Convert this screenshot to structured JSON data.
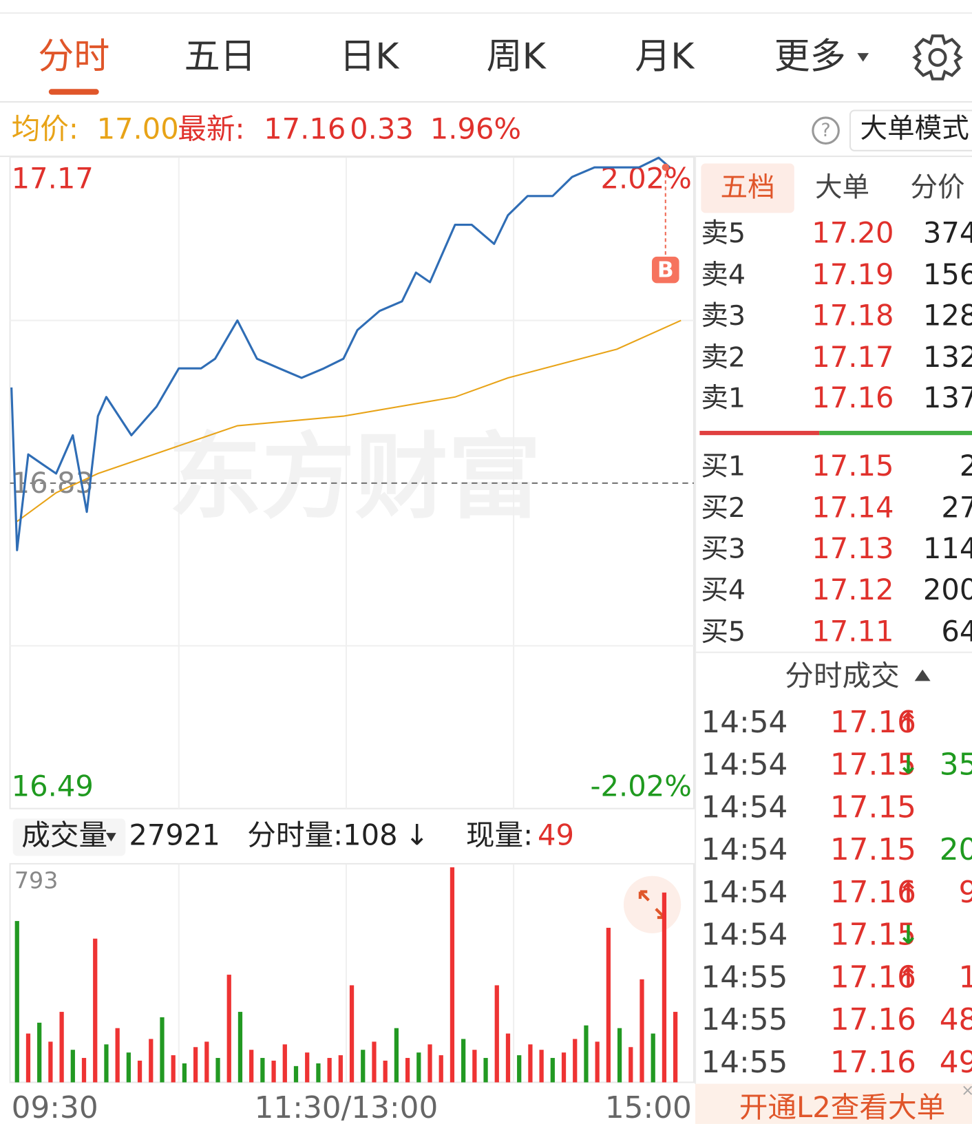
{
  "tabs": [
    "分时",
    "五日",
    "日K",
    "周K",
    "月K",
    "更多"
  ],
  "quote": {
    "avg_label": "均价:",
    "avg": "17.00",
    "latest_label": "最新:",
    "latest": "17.16",
    "change": "0.33",
    "change_pct": "1.96%"
  },
  "help_icon": "?",
  "mode_button": "大单模式",
  "watermark": "东方财富",
  "marker": "B",
  "chart_data": [
    {
      "type": "line",
      "x": [
        0,
        2,
        6,
        11,
        16,
        22,
        27,
        31,
        34,
        43,
        52,
        60,
        68,
        73,
        81,
        88,
        96,
        104,
        112,
        119,
        124,
        132,
        140,
        145,
        150,
        159,
        165,
        173,
        178,
        185,
        194,
        201,
        209,
        217,
        225,
        232,
        236
      ],
      "values": [
        16.93,
        16.76,
        16.86,
        16.85,
        16.84,
        16.88,
        16.8,
        16.9,
        16.92,
        16.88,
        16.91,
        16.95,
        16.95,
        16.96,
        17.0,
        16.96,
        16.95,
        16.94,
        16.95,
        16.96,
        16.99,
        17.01,
        17.02,
        17.05,
        17.04,
        17.1,
        17.1,
        17.08,
        17.11,
        17.13,
        17.13,
        17.15,
        17.16,
        17.16,
        17.16,
        17.17,
        17.16
      ],
      "color": "#2f6db5",
      "avg_x": [
        2,
        16,
        31,
        81,
        119,
        159,
        178,
        217,
        240
      ],
      "avg_values": [
        16.79,
        16.82,
        16.84,
        16.89,
        16.9,
        16.92,
        16.94,
        16.97,
        17.0
      ],
      "avg_color": "#e8a317",
      "xlim": [
        0,
        240
      ],
      "xticks": [
        {
          "value": 0,
          "label": "09:30"
        },
        {
          "value": 120,
          "label": "11:30/13:00"
        },
        {
          "value": 240,
          "label": "15:00"
        }
      ],
      "ylim": [
        16.49,
        17.17
      ],
      "yticks": [
        16.49,
        16.83,
        17.17
      ],
      "y2lim": [
        -2.02,
        2.02
      ],
      "y2ticks": [
        {
          "value": -2.02,
          "label": "-2.02%"
        },
        {
          "value": 2.02,
          "label": "2.02%"
        }
      ],
      "grid": true
    },
    {
      "type": "bar",
      "x": [
        2,
        6,
        10,
        14,
        18,
        22,
        26,
        30,
        34,
        38,
        42,
        46,
        50,
        54,
        58,
        62,
        66,
        70,
        74,
        78,
        82,
        86,
        90,
        94,
        98,
        102,
        106,
        110,
        114,
        118,
        122,
        126,
        130,
        134,
        138,
        142,
        146,
        150,
        154,
        158,
        162,
        166,
        170,
        174,
        178,
        182,
        186,
        190,
        194,
        198,
        202,
        206,
        210,
        214,
        218,
        222,
        226,
        230,
        234,
        238
      ],
      "values": [
        595,
        180,
        220,
        150,
        260,
        120,
        90,
        530,
        140,
        200,
        110,
        80,
        160,
        240,
        100,
        70,
        130,
        150,
        90,
        397,
        260,
        120,
        90,
        80,
        140,
        60,
        110,
        70,
        90,
        100,
        358,
        120,
        150,
        80,
        200,
        90,
        110,
        140,
        100,
        793,
        160,
        120,
        90,
        358,
        180,
        100,
        140,
        120,
        90,
        110,
        160,
        210,
        150,
        570,
        200,
        130,
        380,
        180,
        700,
        260
      ],
      "colors": [
        "#292",
        "#e33",
        "#292",
        "#e33",
        "#e33",
        "#292",
        "#e33",
        "#e33",
        "#292",
        "#e33",
        "#292",
        "#e33",
        "#e33",
        "#292",
        "#e33",
        "#292",
        "#e33",
        "#e33",
        "#292",
        "#e33",
        "#292",
        "#e33",
        "#292",
        "#e33",
        "#e33",
        "#292",
        "#e33",
        "#292",
        "#e33",
        "#e33",
        "#e33",
        "#292",
        "#e33",
        "#e33",
        "#292",
        "#e33",
        "#292",
        "#e33",
        "#e33",
        "#e33",
        "#292",
        "#e33",
        "#292",
        "#e33",
        "#e33",
        "#292",
        "#e33",
        "#e33",
        "#292",
        "#e33",
        "#e33",
        "#292",
        "#e33",
        "#e33",
        "#292",
        "#e33",
        "#e33",
        "#292",
        "#e33",
        "#e33"
      ],
      "xlim": [
        0,
        240
      ],
      "ylim": [
        0,
        793
      ],
      "yticks": [
        793
      ]
    }
  ],
  "volume_header": {
    "selector": "成交量",
    "total": "27921",
    "minute_volume": "分时量:108",
    "trend": "↓",
    "current_label": "现量:",
    "current": "49"
  },
  "side_tabs": [
    "五档",
    "大单",
    "分价"
  ],
  "order_book": {
    "sell": [
      {
        "label": "卖5",
        "price": "17.20",
        "volume": "374"
      },
      {
        "label": "卖4",
        "price": "17.19",
        "volume": "156"
      },
      {
        "label": "卖3",
        "price": "17.18",
        "volume": "128"
      },
      {
        "label": "卖2",
        "price": "17.17",
        "volume": "132"
      },
      {
        "label": "卖1",
        "price": "17.16",
        "volume": "137"
      }
    ],
    "buy": [
      {
        "label": "买1",
        "price": "17.15",
        "volume": "2"
      },
      {
        "label": "买2",
        "price": "17.14",
        "volume": "27"
      },
      {
        "label": "买3",
        "price": "17.13",
        "volume": "114"
      },
      {
        "label": "买4",
        "price": "17.12",
        "volume": "200"
      },
      {
        "label": "买5",
        "price": "17.11",
        "volume": "64"
      }
    ]
  },
  "trades_title": "分时成交",
  "trades": [
    {
      "time": "14:54",
      "price": "17.16",
      "arrow": "↑"
    },
    {
      "time": "14:54",
      "price": "17.15",
      "arrow": "↓",
      "volume": "35",
      "color": "#1f9a1f"
    },
    {
      "time": "14:54",
      "price": "17.15"
    },
    {
      "time": "14:54",
      "price": "17.15",
      "volume": "20",
      "color": "#1f9a1f"
    },
    {
      "time": "14:54",
      "price": "17.16",
      "arrow": "↑",
      "volume": "9",
      "color": "#e0312c"
    },
    {
      "time": "14:54",
      "price": "17.15",
      "arrow": "↓"
    },
    {
      "time": "14:55",
      "price": "17.16",
      "arrow": "↑",
      "volume": "1",
      "color": "#e0312c"
    },
    {
      "time": "14:55",
      "price": "17.16",
      "volume": "48",
      "color": "#e0312c"
    },
    {
      "time": "14:55",
      "price": "17.16",
      "volume": "49",
      "color": "#e0312c"
    }
  ],
  "banner": "开通L2查看大单"
}
